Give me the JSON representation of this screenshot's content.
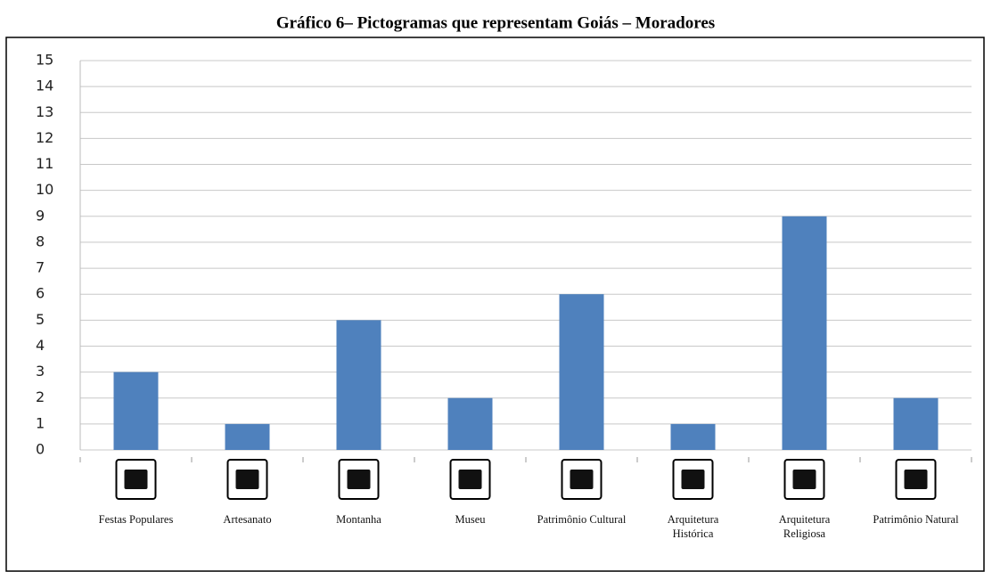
{
  "chart_data": {
    "type": "bar",
    "title": "Gráfico 6– Pictogramas que representam Goiás – Moradores",
    "categories": [
      "Festas Populares",
      "Artesanato",
      "Montanha",
      "Museu",
      "Patrimônio Cultural",
      "Arquitetura Histórica",
      "Arquitetura Religiosa",
      "Patrimônio Natural"
    ],
    "values": [
      3,
      1,
      5,
      2,
      6,
      1,
      9,
      2
    ],
    "color": "#4f81bd",
    "ylim": [
      0,
      15
    ],
    "yticks": [
      0,
      1,
      2,
      3,
      4,
      5,
      6,
      7,
      8,
      9,
      10,
      11,
      12,
      13,
      14,
      15
    ],
    "grid": true
  }
}
